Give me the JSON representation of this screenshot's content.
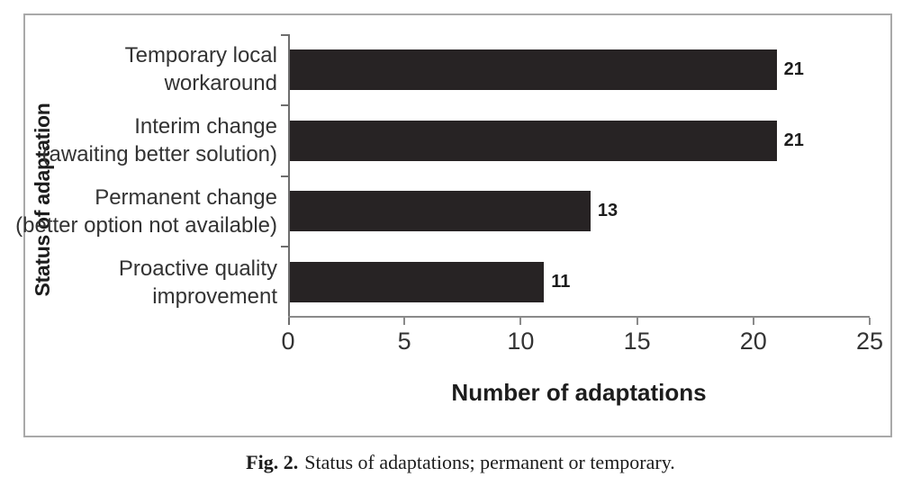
{
  "figure": {
    "caption_label": "Fig. 2.",
    "caption_text": "Status of adaptations; permanent or temporary."
  },
  "chart_data": {
    "type": "bar",
    "orientation": "horizontal",
    "title": "",
    "xlabel": "Number of adaptations",
    "ylabel": "Status of adaptation",
    "categories": [
      "Temporary local workaround",
      "Interim change (awaiting better solution)",
      "Permanent change (better option not available)",
      "Proactive quality improvement"
    ],
    "category_lines": [
      [
        "Temporary local",
        "workaround"
      ],
      [
        "Interim change",
        "(awaiting better solution)"
      ],
      [
        "Permanent change",
        "(better option not available)"
      ],
      [
        "Proactive quality",
        "improvement"
      ]
    ],
    "values": [
      21,
      21,
      13,
      11
    ],
    "xlim": [
      0,
      25
    ],
    "xticks": [
      0,
      5,
      10,
      15,
      20,
      25
    ],
    "grid": false,
    "legend": "none",
    "bar_color": "#272324",
    "axis_color": "#8a8a8a",
    "border_color": "#a9a9a9",
    "text_color": "#333333"
  }
}
